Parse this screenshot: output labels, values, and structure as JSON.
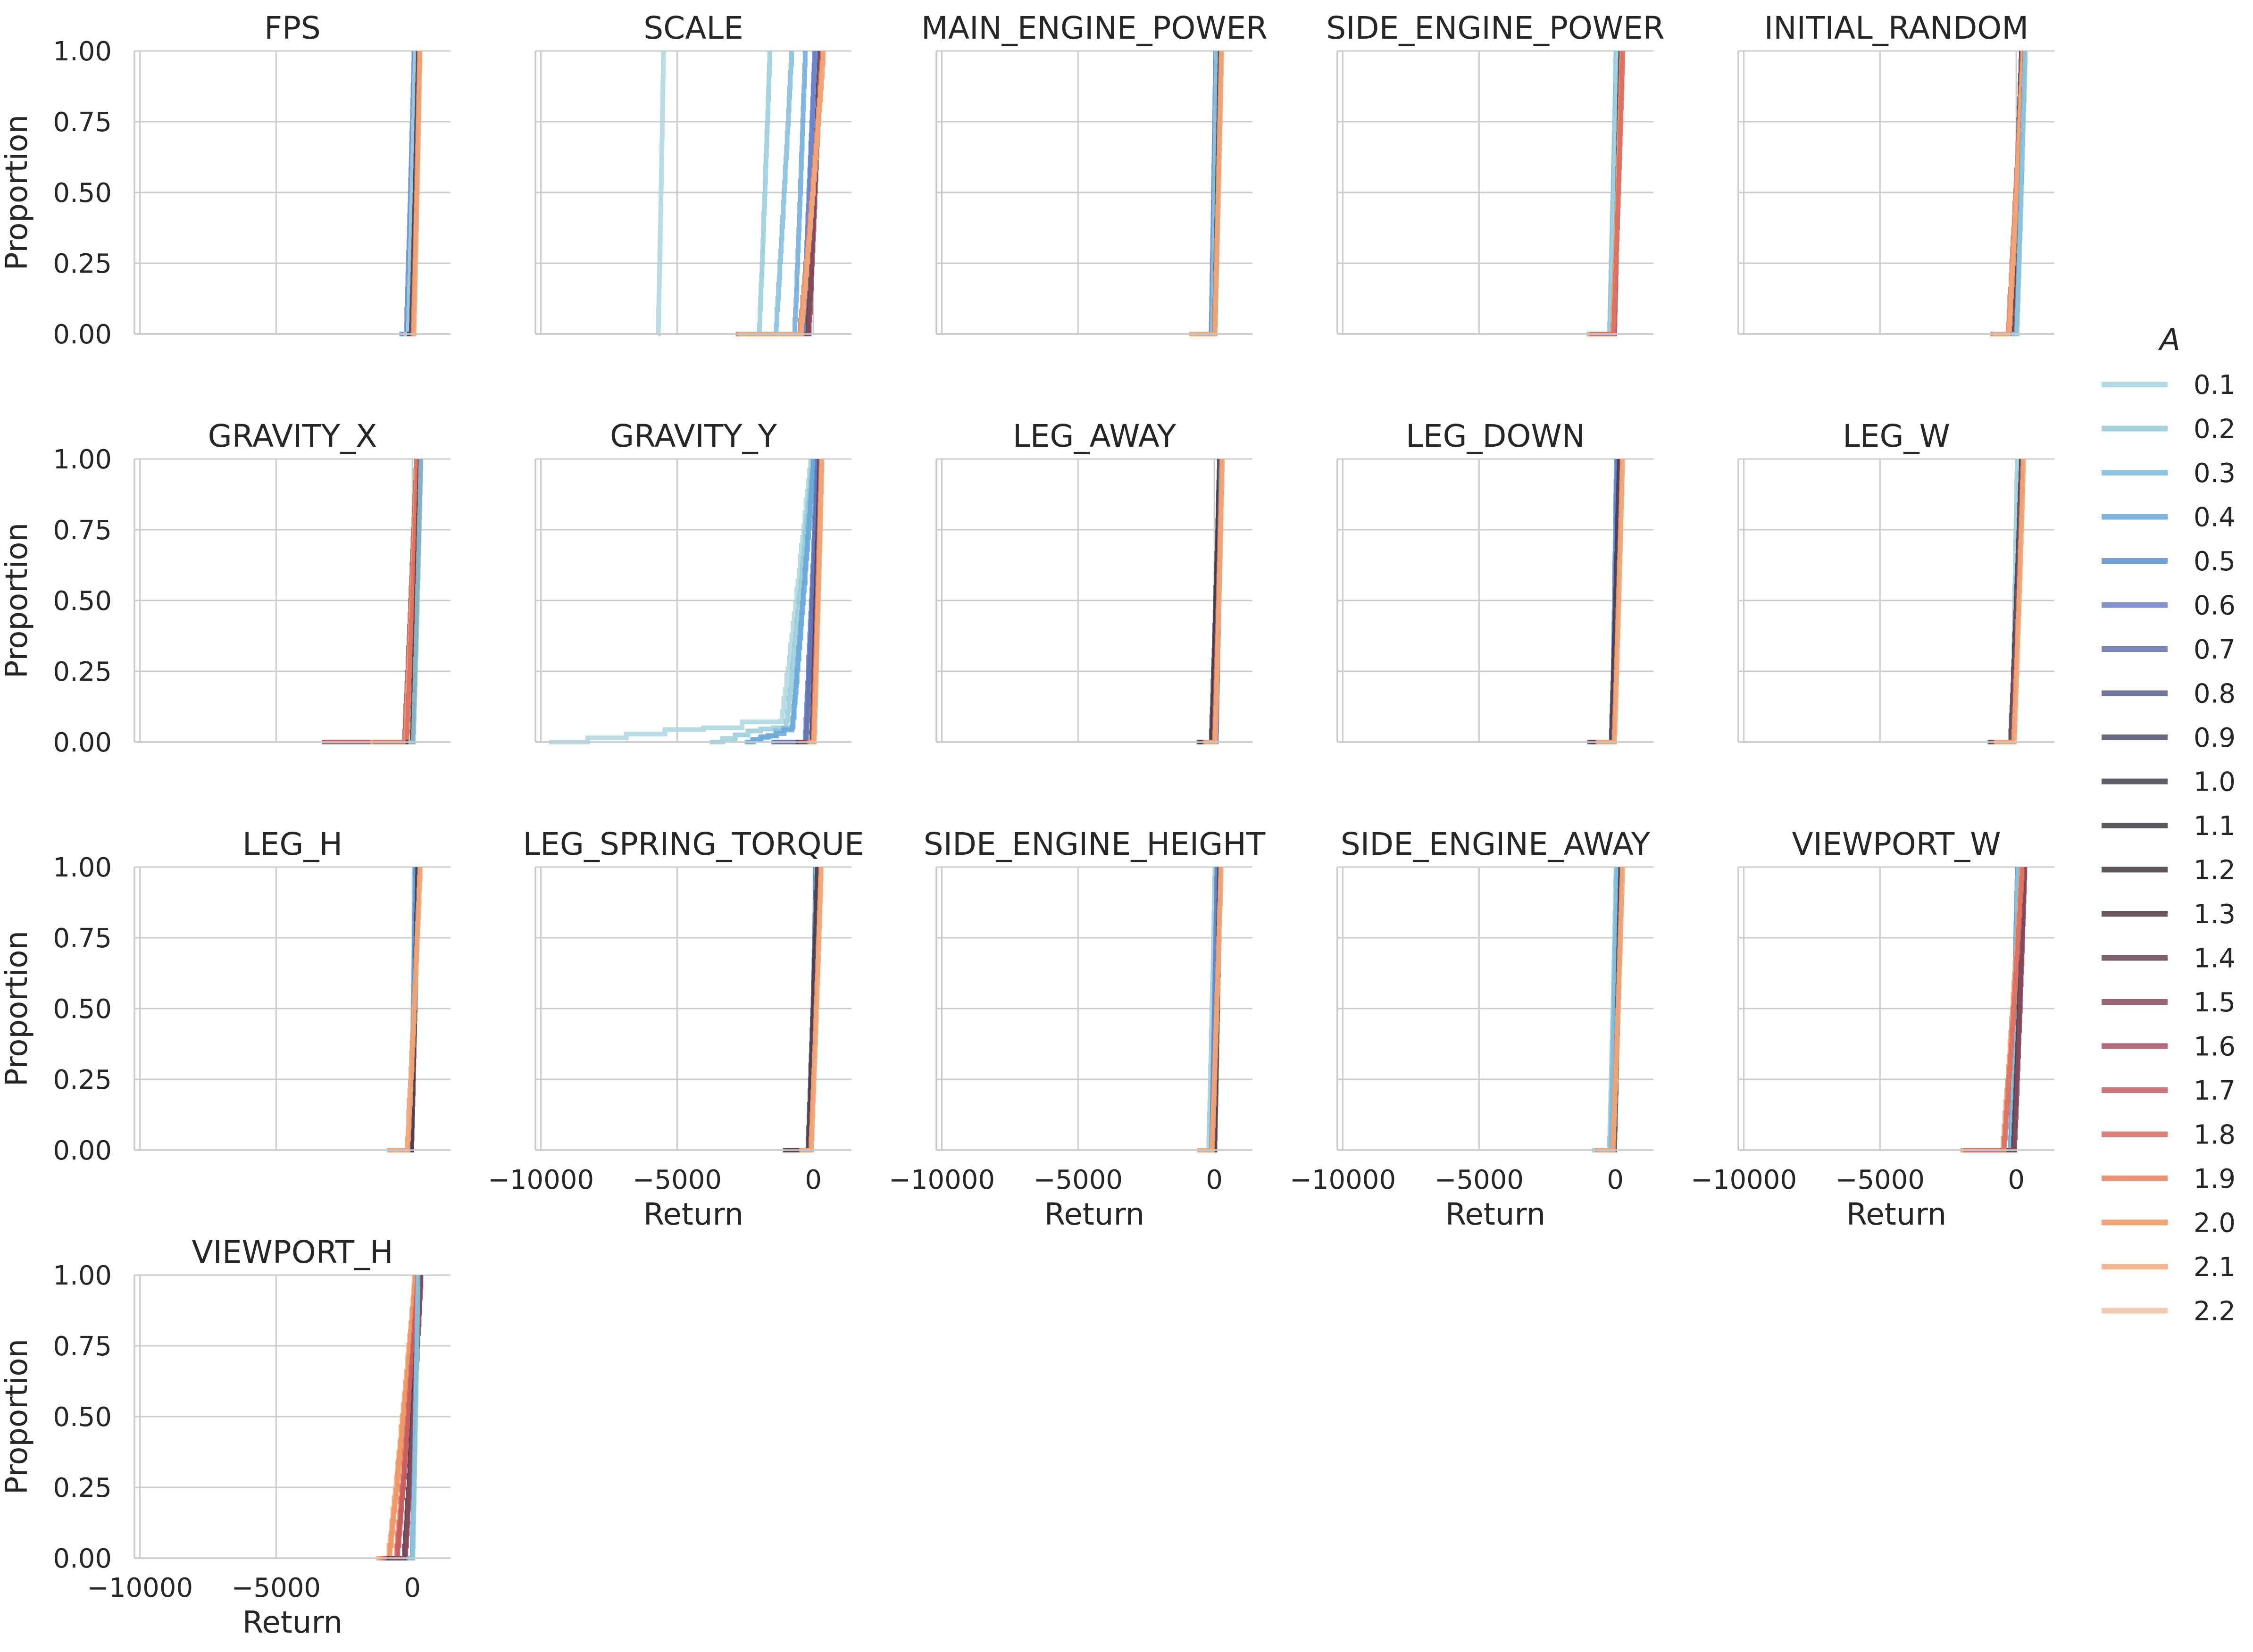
{
  "chart_data": {
    "type": "line",
    "subtype": "ecdf-facet-grid",
    "grid": {
      "rows": 4,
      "cols": 5
    },
    "shared_axes": {
      "xlabel": "Return",
      "ylabel": "Proportion",
      "xlim": [
        -10200,
        1400
      ],
      "ylim": [
        0,
        1
      ],
      "xticks": [
        -10000,
        -5000,
        0
      ],
      "xtick_labels": [
        "−10000",
        "−5000",
        "0"
      ],
      "yticks": [
        0,
        0.25,
        0.5,
        0.75,
        1.0
      ],
      "ytick_labels": [
        "0.00",
        "0.25",
        "0.50",
        "0.75",
        "1.00"
      ],
      "grid": true
    },
    "legend": {
      "title": "A",
      "placement": "right",
      "entries": [
        {
          "label": "0.1",
          "color": "#a8d4de"
        },
        {
          "label": "0.2",
          "color": "#93c9d9"
        },
        {
          "label": "0.3",
          "color": "#7cb8da"
        },
        {
          "label": "0.4",
          "color": "#66a5d9"
        },
        {
          "label": "0.5",
          "color": "#5a8fd2"
        },
        {
          "label": "0.6",
          "color": "#6a7fc8"
        },
        {
          "label": "0.7",
          "color": "#6570ae"
        },
        {
          "label": "0.8",
          "color": "#5a5f8e"
        },
        {
          "label": "0.9",
          "color": "#4d4f6d"
        },
        {
          "label": "1.0",
          "color": "#434250"
        },
        {
          "label": "1.1",
          "color": "#403c44"
        },
        {
          "label": "1.2",
          "color": "#433740"
        },
        {
          "label": "1.3",
          "color": "#553c48"
        },
        {
          "label": "1.4",
          "color": "#6a4452"
        },
        {
          "label": "1.5",
          "color": "#8a4d5e"
        },
        {
          "label": "1.6",
          "color": "#a55163"
        },
        {
          "label": "1.7",
          "color": "#c25a62"
        },
        {
          "label": "1.8",
          "color": "#d9685f"
        },
        {
          "label": "1.9",
          "color": "#e67d5e"
        },
        {
          "label": "2.0",
          "color": "#ef9360"
        },
        {
          "label": "2.1",
          "color": "#f1aa7d"
        },
        {
          "label": "2.2",
          "color": "#f3c2a0"
        }
      ]
    },
    "panels": [
      {
        "title": "FPS",
        "show_xticks": false,
        "show_yticks": true,
        "groups": [
          {
            "colors": [
              "#5a8fd2",
              "#66a5d9",
              "#6a7fc8",
              "#a8d4de"
            ],
            "start": -200,
            "end": 80,
            "tail_start": -400
          },
          {
            "colors": [
              "#434250",
              "#553c48",
              "#8a4d5e",
              "#ef9360",
              "#f1aa7d"
            ],
            "start": 0,
            "end": 250,
            "tail_start": -100
          }
        ]
      },
      {
        "title": "SCALE",
        "show_xticks": false,
        "show_yticks": false,
        "groups": [
          {
            "colors": [
              "#a8d4de"
            ],
            "start": -5700,
            "end": -5500,
            "tail_start": -5700
          },
          {
            "colors": [
              "#93c9d9"
            ],
            "start": -2000,
            "end": -1600,
            "tail_start": -2200
          },
          {
            "colors": [
              "#7cb8da"
            ],
            "start": -1400,
            "end": -800,
            "tail_start": -2500
          },
          {
            "colors": [
              "#66a5d9"
            ],
            "start": -700,
            "end": -300,
            "tail_start": -1200
          },
          {
            "colors": [
              "#5a8fd2",
              "#6a7fc8"
            ],
            "start": -400,
            "end": 50,
            "tail_start": -900
          },
          {
            "colors": [
              "#434250",
              "#553c48",
              "#8a4d5e"
            ],
            "start": -200,
            "end": 250,
            "tail_start": -800
          },
          {
            "colors": [
              "#d9685f",
              "#ef9360",
              "#f1aa7d"
            ],
            "start": -500,
            "end": 350,
            "tail_start": -2800
          }
        ]
      },
      {
        "title": "MAIN_ENGINE_POWER",
        "show_xticks": false,
        "show_yticks": false,
        "groups": [
          {
            "colors": [
              "#5a8fd2",
              "#6a7fc8",
              "#93c9d9"
            ],
            "start": -100,
            "end": 60,
            "tail_start": -500
          },
          {
            "colors": [
              "#434250",
              "#553c48"
            ],
            "start": 0,
            "end": 220,
            "tail_start": -400
          },
          {
            "colors": [
              "#ef9360",
              "#f1aa7d"
            ],
            "start": 0,
            "end": 260,
            "tail_start": -900
          }
        ]
      },
      {
        "title": "SIDE_ENGINE_POWER",
        "show_xticks": false,
        "show_yticks": false,
        "groups": [
          {
            "colors": [
              "#93c9d9",
              "#7cb8da",
              "#a8d4de"
            ],
            "start": -200,
            "end": 40,
            "tail_start": -400
          },
          {
            "colors": [
              "#434250",
              "#8a4d5e"
            ],
            "start": -50,
            "end": 200,
            "tail_start": -800
          },
          {
            "colors": [
              "#ef9360",
              "#f1aa7d",
              "#d9685f"
            ],
            "start": -100,
            "end": 260,
            "tail_start": -1000
          }
        ]
      },
      {
        "title": "INITIAL_RANDOM",
        "show_xticks": false,
        "show_yticks": false,
        "groups": [
          {
            "colors": [
              "#434250",
              "#553c48",
              "#6a4452"
            ],
            "start": -200,
            "end": 200,
            "tail_start": -800
          },
          {
            "colors": [
              "#d9685f",
              "#ef9360",
              "#f1aa7d"
            ],
            "start": -300,
            "end": 240,
            "tail_start": -900
          },
          {
            "colors": [
              "#5a8fd2",
              "#93c9d9"
            ],
            "start": 0,
            "end": 320,
            "tail_start": -200
          }
        ]
      },
      {
        "title": "GRAVITY_X",
        "show_xticks": false,
        "show_yticks": true,
        "groups": [
          {
            "colors": [
              "#a55163",
              "#c25a62"
            ],
            "start": -300,
            "end": 150,
            "tail_start": -3300
          },
          {
            "colors": [
              "#ef9360",
              "#f1aa7d",
              "#d9685f"
            ],
            "start": -250,
            "end": 180,
            "tail_start": -1500
          },
          {
            "colors": [
              "#434250",
              "#553c48",
              "#93c9d9"
            ],
            "start": 0,
            "end": 300,
            "tail_start": -200
          }
        ]
      },
      {
        "title": "GRAVITY_Y",
        "show_xticks": false,
        "show_yticks": false,
        "groups": [
          {
            "colors": [
              "#a8d4de"
            ],
            "start": -1200,
            "end": -100,
            "tail_start": -9700,
            "tail_level": 0.1
          },
          {
            "colors": [
              "#93c9d9"
            ],
            "start": -1000,
            "end": -50,
            "tail_start": -3800,
            "tail_level": 0.08
          },
          {
            "colors": [
              "#7cb8da",
              "#66a5d9"
            ],
            "start": -800,
            "end": 0,
            "tail_start": -2500,
            "tail_level": 0.06
          },
          {
            "colors": [
              "#5a8fd2",
              "#6a7fc8",
              "#6570ae"
            ],
            "start": -300,
            "end": 150,
            "tail_start": -1500
          },
          {
            "colors": [
              "#434250",
              "#553c48",
              "#8a4d5e"
            ],
            "start": -50,
            "end": 250,
            "tail_start": -600
          },
          {
            "colors": [
              "#d9685f",
              "#ef9360",
              "#f1aa7d"
            ],
            "start": 0,
            "end": 300,
            "tail_start": -200
          }
        ]
      },
      {
        "title": "LEG_AWAY",
        "show_xticks": false,
        "show_yticks": false,
        "groups": [
          {
            "colors": [
              "#434250",
              "#553c48",
              "#403c44"
            ],
            "start": -100,
            "end": 200,
            "tail_start": -600
          },
          {
            "colors": [
              "#5a8fd2",
              "#6570ae"
            ],
            "start": 50,
            "end": 250,
            "tail_start": -100
          },
          {
            "colors": [
              "#a55163",
              "#ef9360",
              "#f1aa7d"
            ],
            "start": 0,
            "end": 280,
            "tail_start": -400
          }
        ]
      },
      {
        "title": "LEG_DOWN",
        "show_xticks": false,
        "show_yticks": false,
        "groups": [
          {
            "colors": [
              "#5a8fd2",
              "#66a5d9",
              "#6a7fc8"
            ],
            "start": -100,
            "end": 50,
            "tail_start": -400
          },
          {
            "colors": [
              "#434250",
              "#553c48"
            ],
            "start": -150,
            "end": 150,
            "tail_start": -1000
          },
          {
            "colors": [
              "#ef9360",
              "#f1aa7d"
            ],
            "start": -50,
            "end": 260,
            "tail_start": -700
          }
        ]
      },
      {
        "title": "LEG_W",
        "show_xticks": false,
        "show_yticks": false,
        "groups": [
          {
            "colors": [
              "#93c9d9",
              "#a8d4de"
            ],
            "start": -150,
            "end": 40,
            "tail_start": -300
          },
          {
            "colors": [
              "#434250",
              "#553c48",
              "#8a4d5e"
            ],
            "start": -200,
            "end": 200,
            "tail_start": -1000
          },
          {
            "colors": [
              "#ef9360",
              "#f1aa7d"
            ],
            "start": -100,
            "end": 260,
            "tail_start": -800
          }
        ]
      },
      {
        "title": "LEG_H",
        "show_xticks": false,
        "show_yticks": true,
        "groups": [
          {
            "colors": [
              "#93c9d9",
              "#5a8fd2"
            ],
            "start": -50,
            "end": 100,
            "tail_start": -300
          },
          {
            "colors": [
              "#434250",
              "#553c48"
            ],
            "start": -50,
            "end": 200,
            "tail_start": -500
          },
          {
            "colors": [
              "#ef9360",
              "#f1aa7d"
            ],
            "start": -200,
            "end": 280,
            "tail_start": -900
          }
        ]
      },
      {
        "title": "LEG_SPRING_TORQUE",
        "show_xticks": true,
        "show_yticks": false,
        "groups": [
          {
            "colors": [
              "#5a8fd2",
              "#6570ae",
              "#93c9d9"
            ],
            "start": -100,
            "end": 100,
            "tail_start": -400
          },
          {
            "colors": [
              "#434250",
              "#553c48"
            ],
            "start": -200,
            "end": 150,
            "tail_start": -1100
          },
          {
            "colors": [
              "#ef9360",
              "#f1aa7d"
            ],
            "start": -100,
            "end": 280,
            "tail_start": -500
          }
        ]
      },
      {
        "title": "SIDE_ENGINE_HEIGHT",
        "show_xticks": true,
        "show_yticks": false,
        "groups": [
          {
            "colors": [
              "#93c9d9",
              "#a8d4de"
            ],
            "start": -200,
            "end": 30,
            "tail_start": -400
          },
          {
            "colors": [
              "#5a8fd2",
              "#6a7fc8"
            ],
            "start": -100,
            "end": 100,
            "tail_start": -300
          },
          {
            "colors": [
              "#434250",
              "#553c48"
            ],
            "start": 0,
            "end": 200,
            "tail_start": -200
          },
          {
            "colors": [
              "#ef9360",
              "#f1aa7d"
            ],
            "start": -100,
            "end": 240,
            "tail_start": -600
          }
        ]
      },
      {
        "title": "SIDE_ENGINE_AWAY",
        "show_xticks": true,
        "show_yticks": false,
        "groups": [
          {
            "colors": [
              "#93c9d9",
              "#a8d4de",
              "#7cb8da"
            ],
            "start": -200,
            "end": 40,
            "tail_start": -800
          },
          {
            "colors": [
              "#434250",
              "#553c48"
            ],
            "start": -50,
            "end": 200,
            "tail_start": -300
          },
          {
            "colors": [
              "#ef9360",
              "#f1aa7d"
            ],
            "start": -100,
            "end": 260,
            "tail_start": -700
          }
        ]
      },
      {
        "title": "VIEWPORT_W",
        "show_xticks": true,
        "show_yticks": false,
        "groups": [
          {
            "colors": [
              "#66a5d9",
              "#5a8fd2",
              "#93c9d9"
            ],
            "start": -200,
            "end": 50,
            "tail_start": -900
          },
          {
            "colors": [
              "#434250",
              "#553c48",
              "#8a4d5e"
            ],
            "start": -100,
            "end": 300,
            "tail_start": -1200
          },
          {
            "colors": [
              "#ef9360",
              "#f1aa7d",
              "#d9685f"
            ],
            "start": -500,
            "end": 200,
            "tail_start": -2000
          }
        ]
      },
      {
        "title": "VIEWPORT_H",
        "show_xticks": true,
        "show_yticks": true,
        "groups": [
          {
            "colors": [
              "#f3c2a0",
              "#f1aa7d",
              "#ef9360"
            ],
            "start": -900,
            "end": 100,
            "tail_start": -1300
          },
          {
            "colors": [
              "#e67d5e",
              "#d9685f",
              "#c25a62"
            ],
            "start": -600,
            "end": 200,
            "tail_start": -1100
          },
          {
            "colors": [
              "#434250",
              "#553c48",
              "#8a4d5e"
            ],
            "start": -300,
            "end": 300,
            "tail_start": -900
          },
          {
            "colors": [
              "#5a8fd2",
              "#93c9d9"
            ],
            "start": 0,
            "end": 200,
            "tail_start": -200
          }
        ]
      }
    ]
  }
}
